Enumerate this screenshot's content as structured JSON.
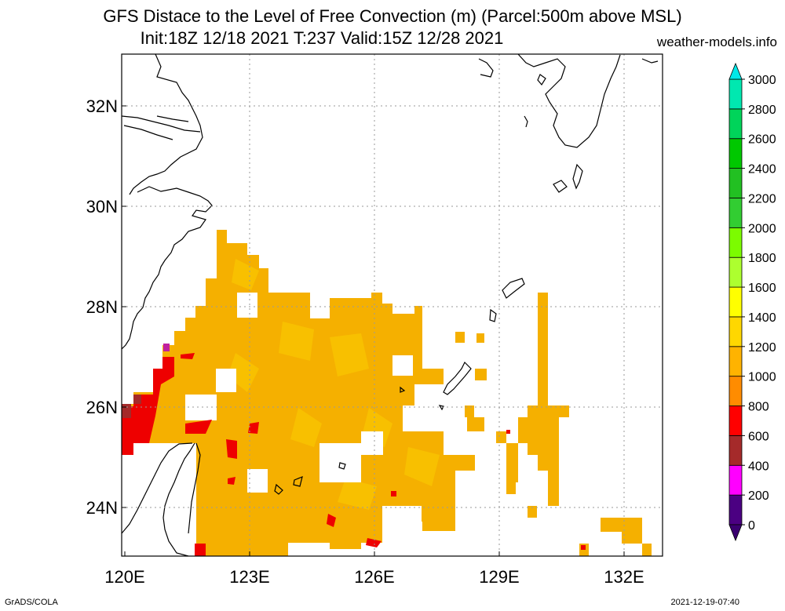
{
  "header": {
    "title_line1": "GFS Distace to the Level of Free Convection (m) (Parcel:500m above MSL)",
    "title_line2": "Init:18Z 12/18 2021 T:237 Valid:15Z 12/28 2021",
    "site": "weather-models.info"
  },
  "map": {
    "lon_range": [
      120,
      133
    ],
    "lat_range": [
      23,
      33
    ],
    "lon_ticks": [
      {
        "value": 120,
        "label": "120E"
      },
      {
        "value": 123,
        "label": "123E"
      },
      {
        "value": 126,
        "label": "126E"
      },
      {
        "value": 129,
        "label": "129E"
      },
      {
        "value": 132,
        "label": "132E"
      }
    ],
    "lat_ticks": [
      {
        "value": 24,
        "label": "24N"
      },
      {
        "value": 26,
        "label": "26N"
      },
      {
        "value": 28,
        "label": "28N"
      },
      {
        "value": 30,
        "label": "30N"
      },
      {
        "value": 32,
        "label": "32N"
      }
    ],
    "grid": true,
    "coastline_color": "#000000",
    "field_colors": {
      "base": "#f5b000",
      "light": "#f9c800",
      "red": "#ee0000",
      "brown": "#a52a2a",
      "magenta": "#d000d0"
    }
  },
  "colorbar": {
    "bins": [
      {
        "from": 0,
        "to": 200,
        "color": "#4b0082"
      },
      {
        "from": 200,
        "to": 400,
        "color": "#ff00ff"
      },
      {
        "from": 400,
        "to": 600,
        "color": "#a52a2a"
      },
      {
        "from": 600,
        "to": 800,
        "color": "#ff0000"
      },
      {
        "from": 800,
        "to": 1000,
        "color": "#ff8c00"
      },
      {
        "from": 1000,
        "to": 1200,
        "color": "#ffb300"
      },
      {
        "from": 1200,
        "to": 1400,
        "color": "#ffd700"
      },
      {
        "from": 1400,
        "to": 1600,
        "color": "#ffff00"
      },
      {
        "from": 1600,
        "to": 1800,
        "color": "#adff2f"
      },
      {
        "from": 1800,
        "to": 2000,
        "color": "#7cfc00"
      },
      {
        "from": 2000,
        "to": 2200,
        "color": "#32cd32"
      },
      {
        "from": 2200,
        "to": 2400,
        "color": "#22c022"
      },
      {
        "from": 2400,
        "to": 2600,
        "color": "#00c800"
      },
      {
        "from": 2600,
        "to": 2800,
        "color": "#00d45a"
      },
      {
        "from": 2800,
        "to": 3000,
        "color": "#00e8b0"
      }
    ],
    "labels": [
      "0",
      "200",
      "400",
      "600",
      "800",
      "1000",
      "1200",
      "1400",
      "1600",
      "1800",
      "2000",
      "2200",
      "2400",
      "2600",
      "2800",
      "3000"
    ],
    "under_color": "#3a0070",
    "over_color": "#00e8e8"
  },
  "footer": {
    "left": "GrADS/COLA",
    "right": "2021-12-19-07:40"
  }
}
